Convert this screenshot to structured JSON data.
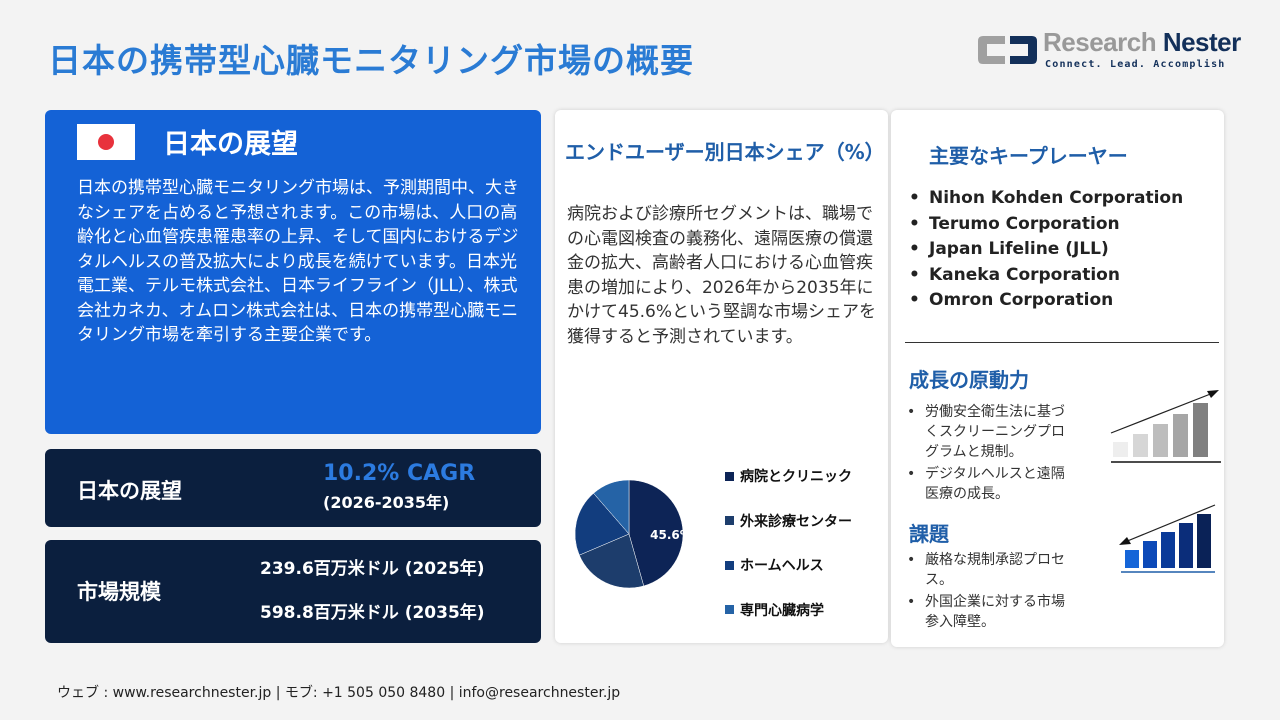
{
  "title": "日本の携帯型心臓モニタリング市場の概要",
  "logo": {
    "name_a": "Research",
    "name_b": "Nester",
    "tagline": "Connect. Lead. Accomplish"
  },
  "outlook": {
    "heading": "日本の展望",
    "text": "日本の携帯型心臓モニタリング市場は、予測期間中、大きなシェアを占めると予想されます。この市場は、人口の高齢化と心血管疾患罹患率の上昇、そして国内におけるデジタルヘルスの普及拡大により成長を続けています。日本光電工業、テルモ株式会社、日本ライフライン（JLL）、株式会社カネカ、オムロン株式会社は、日本の携帯型心臓モニタリング市場を牽引する主要企業です。"
  },
  "cagr": {
    "label": "日本の展望",
    "value": "10.2% CAGR",
    "period": "(2026-2035年)"
  },
  "market_size": {
    "label": "市場規模",
    "v2025": "239.6百万米ドル (2025年)",
    "v2035": "598.8百万米ドル (2035年)"
  },
  "share": {
    "heading": "エンドユーザー別日本シェア（%）",
    "text": "病院および診療所セグメントは、職場での心電図検査の義務化、遠隔医療の償還金の拡大、高齢者人口における心血管疾患の増加により、2026年から2035年にかけて45.6%という堅調な市場シェアを獲得すると予測されています。"
  },
  "chart_data": {
    "type": "pie",
    "categories": [
      "病院とクリニック",
      "外来診療センター",
      "ホームヘルス",
      "専門心臓病学"
    ],
    "values": [
      45.6,
      23,
      20,
      11.4
    ],
    "data_labels": [
      "45.6%"
    ],
    "colors": [
      "#0d2456",
      "#1d3d6c",
      "#123d7e",
      "#2563a6"
    ],
    "legend": "right"
  },
  "players": {
    "heading": "主要なキープレーヤー",
    "items": [
      "Nihon Kohden Corporation",
      "Terumo Corporation",
      "Japan Lifeline (JLL)",
      "Kaneka Corporation",
      "Omron Corporation"
    ]
  },
  "drivers": {
    "heading": "成長の原動力",
    "items": [
      "労働安全衛生法に基づくスクリーニングプログラムと規制。",
      "デジタルヘルスと遠隔医療の成長。"
    ]
  },
  "challenges": {
    "heading": "課題",
    "items": [
      "厳格な規制承認プロセス。",
      "外国企業に対する市場参入障壁。"
    ]
  },
  "footer": "ウェブ : www.researchnester.jp  | モブ: +1 505 050 8480 | info@researchnester.jp"
}
